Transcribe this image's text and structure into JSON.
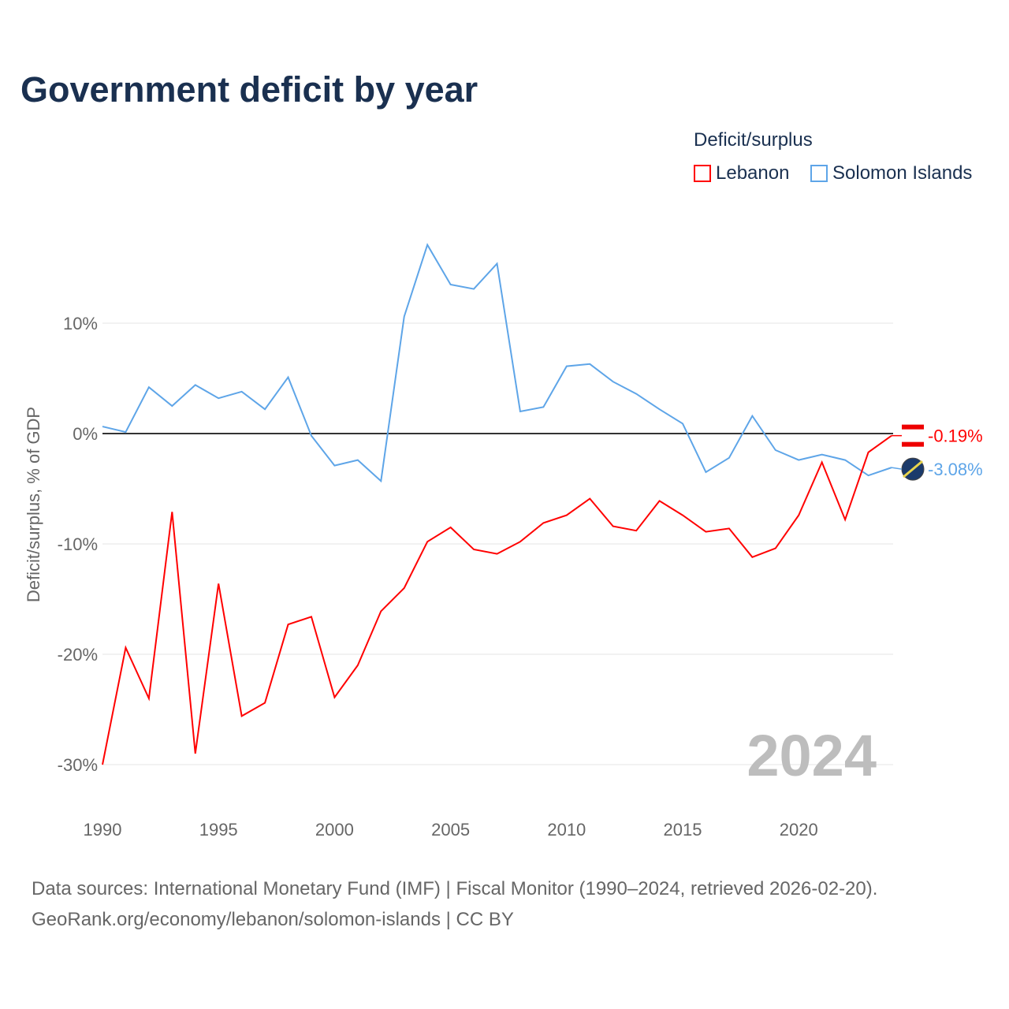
{
  "title": "Government deficit by year",
  "footer": {
    "line1": "Data sources: International Monetary Fund (IMF) | Fiscal Monitor (1990–2024, retrieved 2026-02-20).",
    "line2": "GeoRank.org/economy/lebanon/solomon-islands | CC BY"
  },
  "chart_data": {
    "type": "line",
    "title": "Government deficit by year",
    "ylabel": "Deficit/surplus, % of GDP",
    "xlabel": "",
    "legend_title": "Deficit/surplus",
    "legend_placement": "top-right",
    "year_watermark": "2024",
    "xlim": [
      1990,
      2024
    ],
    "ylim": [
      -32,
      20
    ],
    "xticks": [
      1990,
      1995,
      2000,
      2005,
      2010,
      2015,
      2020
    ],
    "yticks": [
      {
        "v": 10,
        "label": "10%"
      },
      {
        "v": 0,
        "label": "0%"
      },
      {
        "v": -10,
        "label": "-10%"
      },
      {
        "v": -20,
        "label": "-20%"
      },
      {
        "v": -30,
        "label": "-30%"
      }
    ],
    "x": [
      1990,
      1991,
      1992,
      1993,
      1994,
      1995,
      1996,
      1997,
      1998,
      1999,
      2000,
      2001,
      2002,
      2003,
      2004,
      2005,
      2006,
      2007,
      2008,
      2009,
      2010,
      2011,
      2012,
      2013,
      2014,
      2015,
      2016,
      2017,
      2018,
      2019,
      2020,
      2021,
      2022,
      2023,
      2024
    ],
    "series": [
      {
        "name": "Lebanon",
        "color": "#ff0000",
        "end_label": "-0.19%",
        "values": [
          -30,
          -19.4,
          -24,
          -7.1,
          -29,
          -13.6,
          -25.6,
          -24.4,
          -17.3,
          -16.6,
          -23.9,
          -21,
          -16.1,
          -14,
          -9.8,
          -8.5,
          -10.5,
          -10.9,
          -9.8,
          -8.1,
          -7.4,
          -5.9,
          -8.4,
          -8.8,
          -6.1,
          -7.4,
          -8.9,
          -8.6,
          -11.2,
          -10.4,
          -7.4,
          -2.6,
          -7.8,
          -1.7,
          -0.19
        ]
      },
      {
        "name": "Solomon Islands",
        "color": "#5ea5e8",
        "end_label": "-3.08%",
        "values": [
          0.64,
          0.14,
          4.2,
          2.5,
          4.4,
          3.2,
          3.8,
          2.2,
          5.1,
          -0.2,
          -2.9,
          -2.4,
          -4.3,
          10.6,
          17.1,
          13.5,
          13.1,
          15.4,
          2.0,
          2.4,
          6.1,
          6.3,
          4.7,
          3.6,
          2.2,
          0.9,
          -3.5,
          -2.2,
          1.6,
          -1.5,
          -2.4,
          -1.9,
          -2.4,
          -3.8,
          -3.08
        ]
      }
    ]
  }
}
